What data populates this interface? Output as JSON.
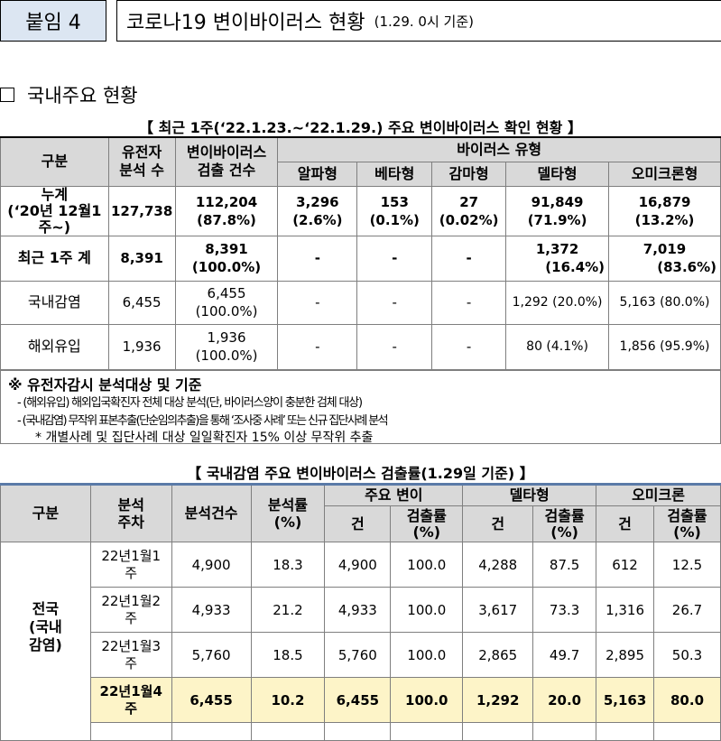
{
  "header": {
    "appendix_label": "붙임 4",
    "title": "코로나19 변이바이러스 현황",
    "subtitle": "(1.29. 0시 기준)"
  },
  "section_title": "국내주요 현황",
  "table1": {
    "caption": "【 최근 1주(‘22.1.23.~‘22.1.29.) 주요 변이바이러스 확인 현황 】",
    "headers": {
      "category": "구분",
      "analyzed_1": "유전자",
      "analyzed_2": "분석 수",
      "detected_1": "변이바이러스",
      "detected_2": "검출 건수",
      "virus_types": "바이러스 유형",
      "alpha": "알파형",
      "beta": "베타형",
      "gamma": "감마형",
      "delta": "델타형",
      "omicron": "오미크론형"
    },
    "rows": [
      {
        "label_1": "누계",
        "label_2": "(‘20년 12월1",
        "label_3": "주~)",
        "analyzed": "127,738",
        "detected": "112,204",
        "detected_pct": "(87.8%)",
        "alpha": "3,296",
        "alpha_pct": "(2.6%)",
        "beta": "153",
        "beta_pct": "(0.1%)",
        "gamma": "27",
        "gamma_pct": "(0.02%)",
        "delta": "91,849",
        "delta_pct": "(71.9%)",
        "omicron": "16,879",
        "omicron_pct": "(13.2%)"
      },
      {
        "label": "최근 1주 계",
        "analyzed": "8,391",
        "detected": "8,391",
        "detected_pct": "(100.0%)",
        "alpha": "-",
        "beta": "-",
        "gamma": "-",
        "delta": "1,372",
        "delta_pct": "(16.4%)",
        "omicron": "7,019",
        "omicron_pct": "(83.6%)"
      },
      {
        "label": "국내감염",
        "analyzed": "6,455",
        "detected": "6,455",
        "detected_pct": "(100.0%)",
        "alpha": "-",
        "beta": "-",
        "gamma": "-",
        "delta": "1,292 (20.0%)",
        "omicron": "5,163 (80.0%)"
      },
      {
        "label": "해외유입",
        "analyzed": "1,936",
        "detected": "1,936",
        "detected_pct": "(100.0%)",
        "alpha": "-",
        "beta": "-",
        "gamma": "-",
        "delta": "80 (4.1%)",
        "omicron": "1,856 (95.9%)"
      }
    ]
  },
  "notes": {
    "title": "※ 유전자감시 분석대상 및 기준",
    "line1": "- (해외유입) 해외입국확진자 전체 대상 분석(단, 바이러스양이 충분한 검체 대상)",
    "line2": "- (국내감염) 무작위 표본추출(단순임의추출)을 통해 ‘조사중 사례’ 또는 신규 집단사례 분석",
    "line3": "* 개별사례 및 집단사례 대상 일일확진자 15% 이상 무작위 추출"
  },
  "table2": {
    "caption": "【 국내감염 주요 변이바이러스 검출률(1.29일 기준) 】",
    "headers": {
      "category": "구분",
      "week_1": "분석",
      "week_2": "주차",
      "count": "분석건수",
      "rate_1": "분석률",
      "rate_2": "(%)",
      "major": "주요 변이",
      "delta": "델타형",
      "omicron": "오미크론",
      "cases": "건",
      "det_1": "검출률",
      "det_2": "(%)"
    },
    "region_1": "전국",
    "region_2": "(국내",
    "region_3": "감염)",
    "rows": [
      {
        "week_1": "22년1월1",
        "week_2": "주",
        "count": "4,900",
        "rate": "18.3",
        "major_n": "4,900",
        "major_r": "100.0",
        "delta_n": "4,288",
        "delta_r": "87.5",
        "omi_n": "612",
        "omi_r": "12.5"
      },
      {
        "week_1": "22년1월2",
        "week_2": "주",
        "count": "4,933",
        "rate": "21.2",
        "major_n": "4,933",
        "major_r": "100.0",
        "delta_n": "3,617",
        "delta_r": "73.3",
        "omi_n": "1,316",
        "omi_r": "26.7"
      },
      {
        "week_1": "22년1월3",
        "week_2": "주",
        "count": "5,760",
        "rate": "18.5",
        "major_n": "5,760",
        "major_r": "100.0",
        "delta_n": "2,865",
        "delta_r": "49.7",
        "omi_n": "2,895",
        "omi_r": "50.3"
      },
      {
        "week_1": "22년1월4",
        "week_2": "주",
        "count": "6,455",
        "rate": "10.2",
        "major_n": "6,455",
        "major_r": "100.0",
        "delta_n": "1,292",
        "delta_r": "20.0",
        "omi_n": "5,163",
        "omi_r": "80.0"
      }
    ]
  }
}
